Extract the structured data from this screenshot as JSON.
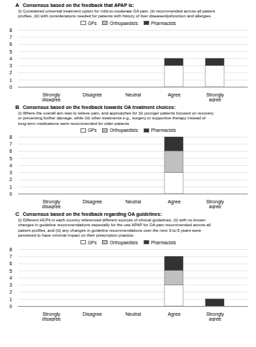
{
  "chart_data": [
    {
      "type": "bar",
      "stacked": true,
      "grid": true,
      "legend": "top",
      "annotations": [
        "A"
      ],
      "title": "Consensus based on the feedback that APAP is:",
      "subtitle": "(i) Considered universal treatment option for mild-to-moderate OA pain, (ii) recommended across all patient\nprofiles, (iii) with considerations needed for patients with history of liver disease/dysfunction and allergies.",
      "categories": [
        "Strongly\ndisagree",
        "Disagree",
        "Neutral",
        "Agree",
        "Strongly\nagree"
      ],
      "series": [
        {
          "name": "GPs",
          "color": "#ffffff",
          "values": [
            0,
            0,
            0,
            3,
            3
          ]
        },
        {
          "name": "Orthopaedists",
          "color": "#c0c0c0",
          "values": [
            0,
            0,
            0,
            0,
            0
          ]
        },
        {
          "name": "Pharmacists",
          "color": "#333333",
          "values": [
            0,
            0,
            0,
            1,
            1
          ]
        }
      ],
      "ylim": [
        0,
        8
      ],
      "yticks": [
        0,
        1,
        2,
        3,
        4,
        5,
        6,
        7,
        8
      ]
    },
    {
      "type": "bar",
      "stacked": true,
      "grid": true,
      "legend": "top",
      "annotations": [
        "B"
      ],
      "title": "Consensus based on the feedback towards OA treatment choices:",
      "subtitle": "(i) Where the overall aim was to relieve pain, and approaches for (ii) younger patients focused on recovery\nor preventing further damage, while (iii) other treatments e.g., surgery or supportive therapy instead of\nlong-term medications were recommended for older patients",
      "categories": [
        "Strongly\ndisagree",
        "Disagree",
        "Neutral",
        "Agree",
        "Strongly\nagree"
      ],
      "series": [
        {
          "name": "GPs",
          "color": "#ffffff",
          "values": [
            0,
            0,
            0,
            3,
            0
          ]
        },
        {
          "name": "Orthopaedists",
          "color": "#c0c0c0",
          "values": [
            0,
            0,
            0,
            3,
            0
          ]
        },
        {
          "name": "Pharmacists",
          "color": "#333333",
          "values": [
            0,
            0,
            0,
            2,
            0
          ]
        }
      ],
      "ylim": [
        0,
        8
      ],
      "yticks": [
        0,
        1,
        2,
        3,
        4,
        5,
        6,
        7,
        8
      ]
    },
    {
      "type": "bar",
      "stacked": true,
      "grid": true,
      "legend": "top",
      "annotations": [
        "C"
      ],
      "title": "Consensus based on the feedback regarding OA guidelines:",
      "subtitle": "(i) Different HCPs in each country referenced different sources of clinical guidelines, (ii) with no known\nchanges in guideline recommendations especially for the use APAP for OA pain recommended across all\npatient profiles, and (iii) any changes in guideline recommendations over the next 3-to-5 years were\nperceived to have minimal impact on their prescription practice.",
      "categories": [
        "Strongly\ndisagree",
        "Disagree",
        "Neutral",
        "Agree",
        "Strongly\nagree"
      ],
      "series": [
        {
          "name": "GPs",
          "color": "#ffffff",
          "values": [
            0,
            0,
            0,
            3,
            0
          ]
        },
        {
          "name": "Orthopaedists",
          "color": "#c0c0c0",
          "values": [
            0,
            0,
            0,
            2,
            0
          ]
        },
        {
          "name": "Pharmacists",
          "color": "#333333",
          "values": [
            0,
            0,
            0,
            2,
            1
          ]
        }
      ],
      "ylim": [
        0,
        8
      ],
      "yticks": [
        0,
        1,
        2,
        3,
        4,
        5,
        6,
        7,
        8
      ]
    }
  ]
}
